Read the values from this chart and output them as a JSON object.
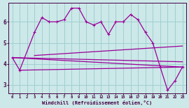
{
  "background_color": "#cce8e8",
  "line_color": "#990099",
  "axis_label_color": "#440044",
  "grid_color": "#99cccc",
  "xlabel": "Windchill (Refroidissement éolien,°C)",
  "xlim": [
    -0.5,
    23.5
  ],
  "ylim": [
    2.6,
    6.9
  ],
  "yticks": [
    3,
    4,
    5,
    6
  ],
  "xticks": [
    0,
    1,
    2,
    3,
    4,
    5,
    6,
    7,
    8,
    9,
    10,
    11,
    12,
    13,
    14,
    15,
    16,
    17,
    18,
    19,
    20,
    21,
    22,
    23
  ],
  "main_x": [
    0,
    1,
    3,
    4,
    5,
    6,
    7,
    8,
    9,
    10,
    11,
    12,
    13,
    14,
    15,
    16,
    17,
    18,
    19,
    20,
    21,
    22,
    23
  ],
  "main_y": [
    4.3,
    3.7,
    5.5,
    6.2,
    6.0,
    6.0,
    6.1,
    6.65,
    6.65,
    6.0,
    5.85,
    6.0,
    5.4,
    6.0,
    6.0,
    6.35,
    6.1,
    5.5,
    5.0,
    3.85,
    2.75,
    3.2,
    3.85
  ],
  "line1_x": [
    0,
    23
  ],
  "line1_y": [
    4.3,
    3.85
  ],
  "line2_x": [
    0,
    23
  ],
  "line2_y": [
    4.3,
    4.1
  ],
  "line3_x": [
    1,
    23
  ],
  "line3_y": [
    3.7,
    3.85
  ],
  "line4_x": [
    3,
    23
  ],
  "line4_y": [
    4.4,
    4.85
  ]
}
